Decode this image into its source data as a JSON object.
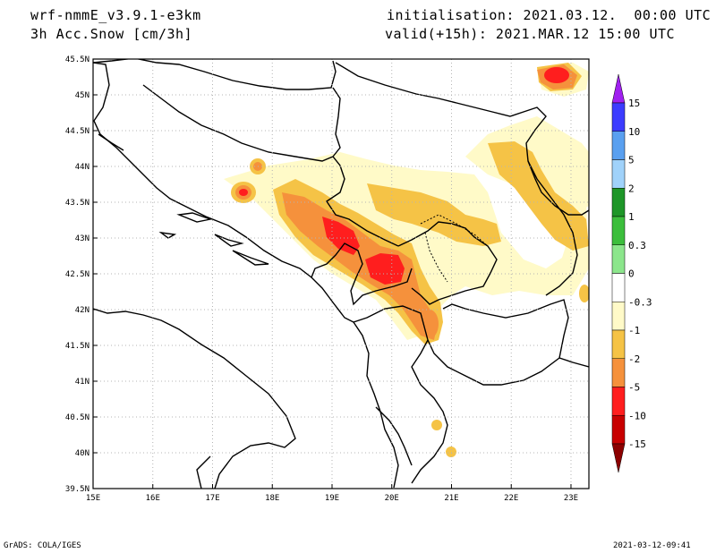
{
  "header": {
    "model": "wrf-nmmE_v3.9.1-e3km",
    "field": "3h Acc.Snow [cm/3h]",
    "initialisation": "initialisation: 2021.03.12.  00:00 UTC",
    "valid": "valid(+15h): 2021.MAR.12 15:00 UTC"
  },
  "footer": {
    "credit": "GrADS: COLA/IGES",
    "timestamp": "2021-03-12-09:41"
  },
  "map": {
    "lon_range": [
      15,
      23.3
    ],
    "lat_range": [
      39.5,
      45.5
    ],
    "lon_ticks": [
      {
        "v": 15,
        "label": "15E"
      },
      {
        "v": 16,
        "label": "16E"
      },
      {
        "v": 17,
        "label": "17E"
      },
      {
        "v": 18,
        "label": "18E"
      },
      {
        "v": 19,
        "label": "19E"
      },
      {
        "v": 20,
        "label": "20E"
      },
      {
        "v": 21,
        "label": "21E"
      },
      {
        "v": 22,
        "label": "22E"
      },
      {
        "v": 23,
        "label": "23E"
      }
    ],
    "lat_ticks": [
      {
        "v": 39.5,
        "label": "39.5N"
      },
      {
        "v": 40,
        "label": "40N"
      },
      {
        "v": 40.5,
        "label": "40.5N"
      },
      {
        "v": 41,
        "label": "41N"
      },
      {
        "v": 41.5,
        "label": "41.5N"
      },
      {
        "v": 42,
        "label": "42N"
      },
      {
        "v": 42.5,
        "label": "42.5N"
      },
      {
        "v": 43,
        "label": "43N"
      },
      {
        "v": 43.5,
        "label": "43.5N"
      },
      {
        "v": 44,
        "label": "44N"
      },
      {
        "v": 44.5,
        "label": "44.5N"
      },
      {
        "v": 45,
        "label": "45N"
      },
      {
        "v": 45.5,
        "label": "45.5N"
      }
    ],
    "grid": true
  },
  "colorbar": {
    "labels": [
      "15",
      "10",
      "5",
      "2",
      "1",
      "0.3",
      "0",
      "-0.3",
      "-1",
      "-2",
      "-5",
      "-10",
      "-15"
    ],
    "colors": [
      "#a020f0",
      "#3c3cff",
      "#5aa0f0",
      "#a0d2fa",
      "#1e9628",
      "#3cbe3c",
      "#8ce68c",
      "#ffffff",
      "#fffac8",
      "#f5c346",
      "#f5913c",
      "#ff1e1e",
      "#c80000",
      "#8c0000"
    ]
  }
}
